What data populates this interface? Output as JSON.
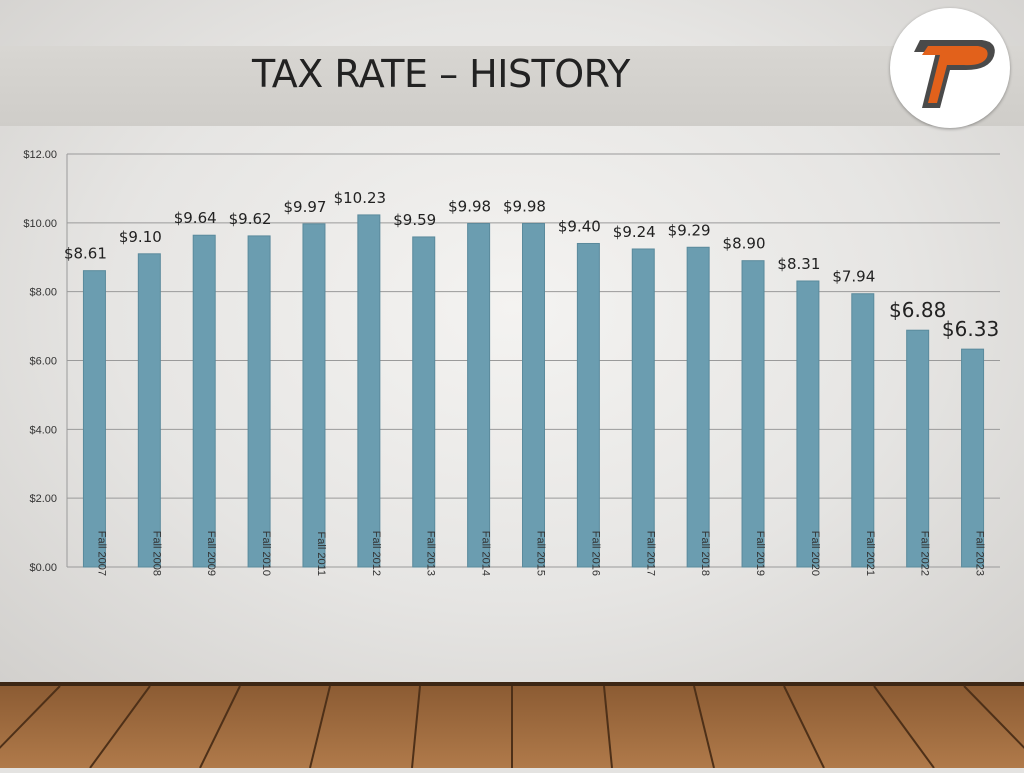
{
  "slide": {
    "title": "TAX RATE – HISTORY",
    "logo_letter": "P"
  },
  "colors": {
    "bar": "#6b9db0",
    "bar_edge": "#5a8a9c",
    "grid": "#9a9a9a",
    "logo_orange": "#e2611b",
    "logo_dark": "#4a4a4a"
  },
  "chart_data": {
    "type": "bar",
    "title": "",
    "xlabel": "",
    "ylabel": "",
    "ylim": [
      0,
      12
    ],
    "ytick_values": [
      0,
      2,
      4,
      6,
      8,
      10,
      12
    ],
    "ytick_labels": [
      "$0.00",
      "$2.00",
      "$4.00",
      "$6.00",
      "$8.00",
      "$10.00",
      "$12.00"
    ],
    "grid": true,
    "legend": "none",
    "categories": [
      "Fall 2007",
      "Fall 2008",
      "Fall 2009",
      "Fall 2010",
      "Fall 2011",
      "Fall 2012",
      "Fall 2013",
      "Fall 2014",
      "Fall 2015",
      "Fall 2016",
      "Fall 2017",
      "Fall 2018",
      "Fall 2019",
      "Fall 2020",
      "Fall 2021",
      "Fall 2022",
      "Fall 2023"
    ],
    "values": [
      8.61,
      9.1,
      9.64,
      9.62,
      9.97,
      10.23,
      9.59,
      9.98,
      9.98,
      9.4,
      9.24,
      9.29,
      8.9,
      8.31,
      7.94,
      6.88,
      6.33
    ],
    "data_labels": [
      "$8.61",
      "$9.10",
      "$9.64",
      "$9.62",
      "$9.97",
      "$10.23",
      "$9.59",
      "$9.98",
      "$9.98",
      "$9.40",
      "$9.24",
      "$9.29",
      "$8.90",
      "$8.31",
      "$7.94",
      "$6.88",
      "$6.33"
    ]
  }
}
